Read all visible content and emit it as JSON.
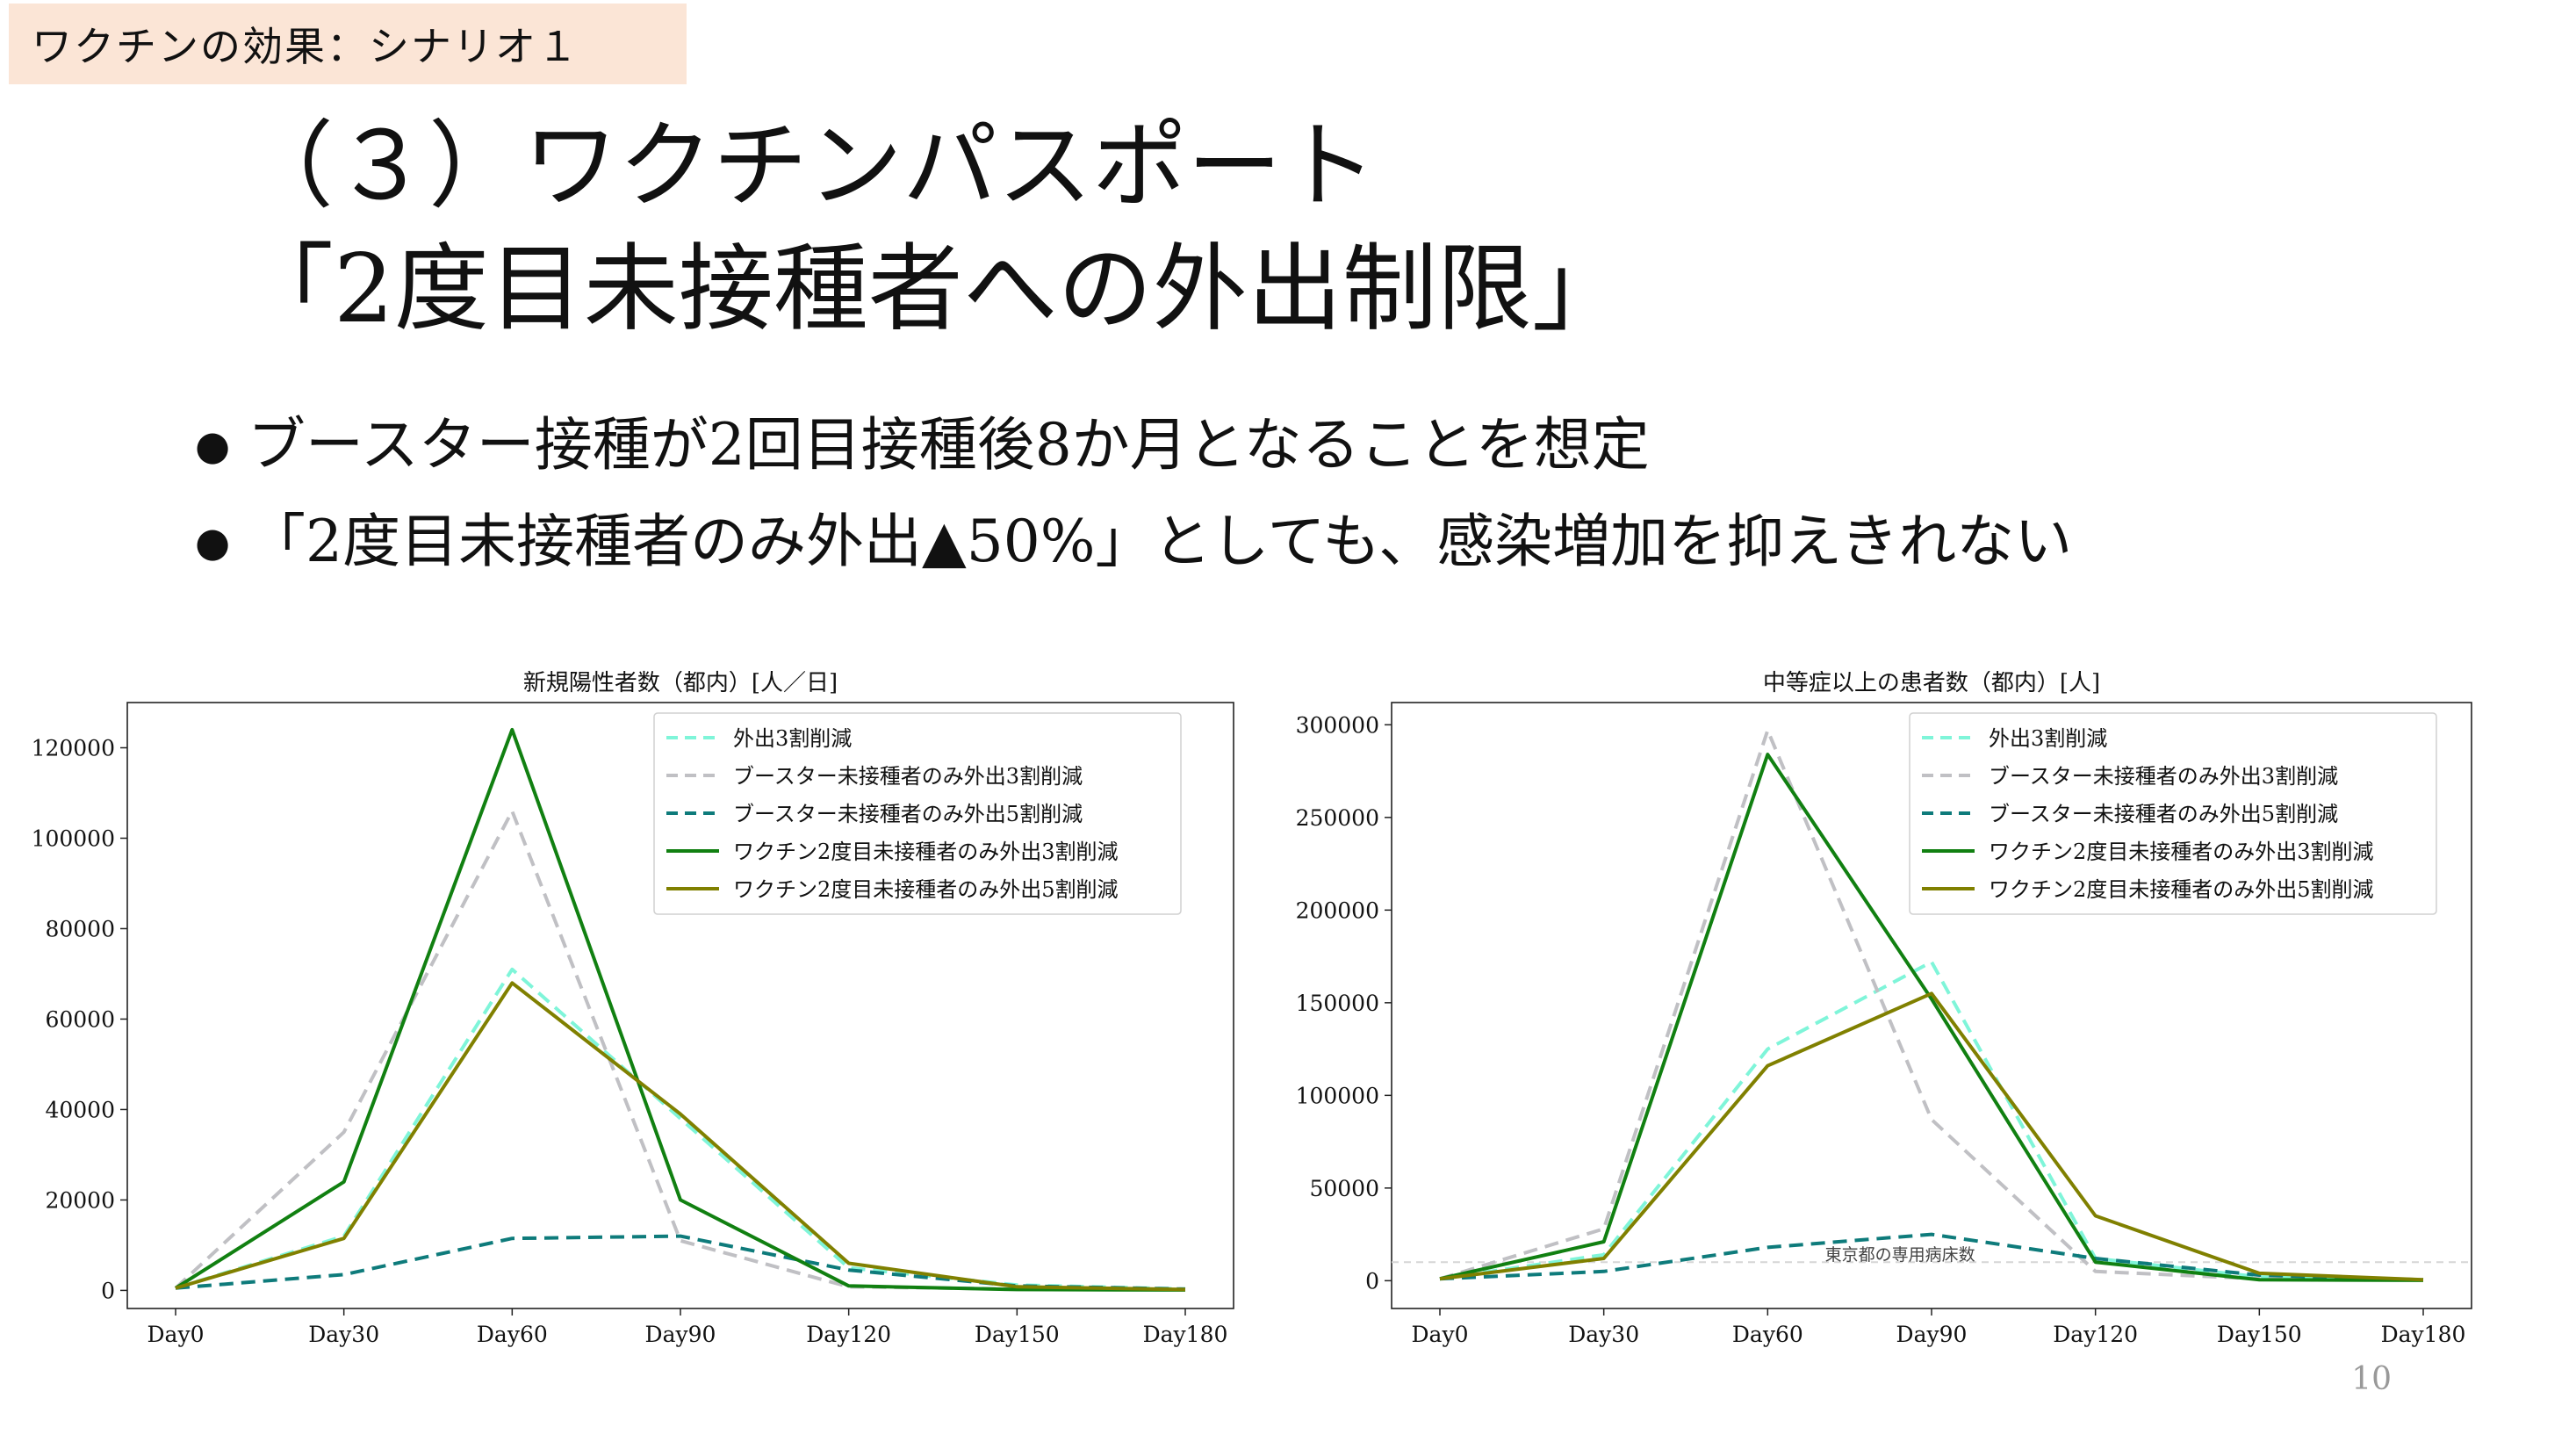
{
  "header_tag": "ワクチンの効果：シナリオ１",
  "title": {
    "line1": "（３）ワクチンパスポート",
    "line2": "「2度目未接種者への外出制限」"
  },
  "bullets": [
    "ブースター接種が2回目接種後8か月となることを想定",
    "「2度目未接種者のみ外出▲50%」としても、感染増加を抑えきれない"
  ],
  "page_number": "10",
  "chart_data": [
    {
      "type": "line",
      "title": "新規陽性者数（都内）[人／日]",
      "xlabel": "",
      "ylabel": "",
      "categories": [
        "Day0",
        "Day30",
        "Day60",
        "Day90",
        "Day120",
        "Day150",
        "Day180"
      ],
      "ylim": [
        -4000,
        130000
      ],
      "yticks": [
        0,
        20000,
        40000,
        60000,
        80000,
        100000,
        120000
      ],
      "legend_position": "top-right",
      "grid": false,
      "series": [
        {
          "name": "外出3割削減",
          "color": "#7ff5d9",
          "dash": "dashed",
          "values": [
            500,
            12000,
            71000,
            38000,
            5000,
            1200,
            300
          ]
        },
        {
          "name": "ブースター未接種者のみ外出3割削減",
          "color": "#c0c0c4",
          "dash": "dashed",
          "values": [
            500,
            35000,
            106000,
            11000,
            800,
            300,
            200
          ]
        },
        {
          "name": "ブースター未接種者のみ外出5割削減",
          "color": "#0e7b7b",
          "dash": "dashed",
          "values": [
            500,
            3500,
            11500,
            12000,
            4500,
            1000,
            300
          ]
        },
        {
          "name": "ワクチン2度目未接種者のみ外出3割削減",
          "color": "#118011",
          "dash": "solid",
          "values": [
            500,
            24000,
            124000,
            20000,
            1000,
            200,
            100
          ]
        },
        {
          "name": "ワクチン2度目未接種者のみ外出5割削減",
          "color": "#808000",
          "dash": "solid",
          "values": [
            500,
            11500,
            68000,
            39000,
            6000,
            800,
            200
          ]
        }
      ]
    },
    {
      "type": "line",
      "title": "中等症以上の患者数（都内）[人]",
      "xlabel": "",
      "ylabel": "",
      "categories": [
        "Day0",
        "Day30",
        "Day60",
        "Day90",
        "Day120",
        "Day150",
        "Day180"
      ],
      "ylim": [
        -15000,
        312000
      ],
      "yticks": [
        0,
        50000,
        100000,
        150000,
        200000,
        250000,
        300000
      ],
      "legend_position": "top-right",
      "grid": false,
      "reference_line": {
        "value": 10000,
        "label": "東京都の専用病床数",
        "color": "#d6d6d6"
      },
      "series": [
        {
          "name": "外出3割削減",
          "color": "#7ff5d9",
          "dash": "dashed",
          "values": [
            1000,
            14000,
            125000,
            172000,
            12000,
            2000,
            500
          ]
        },
        {
          "name": "ブースター未接種者のみ外出3割削減",
          "color": "#c0c0c4",
          "dash": "dashed",
          "values": [
            1000,
            28000,
            297000,
            87000,
            5000,
            1000,
            500
          ]
        },
        {
          "name": "ブースター未接種者のみ外出5割削減",
          "color": "#0e7b7b",
          "dash": "dashed",
          "values": [
            1000,
            5000,
            18000,
            25000,
            12000,
            3000,
            500
          ]
        },
        {
          "name": "ワクチン2度目未接種者のみ外出3割削減",
          "color": "#118011",
          "dash": "solid",
          "values": [
            1000,
            21000,
            284000,
            152000,
            10000,
            500,
            200
          ]
        },
        {
          "name": "ワクチン2度目未接種者のみ外出5割削減",
          "color": "#808000",
          "dash": "solid",
          "values": [
            1000,
            12000,
            116000,
            155000,
            35000,
            4000,
            500
          ]
        }
      ]
    }
  ]
}
